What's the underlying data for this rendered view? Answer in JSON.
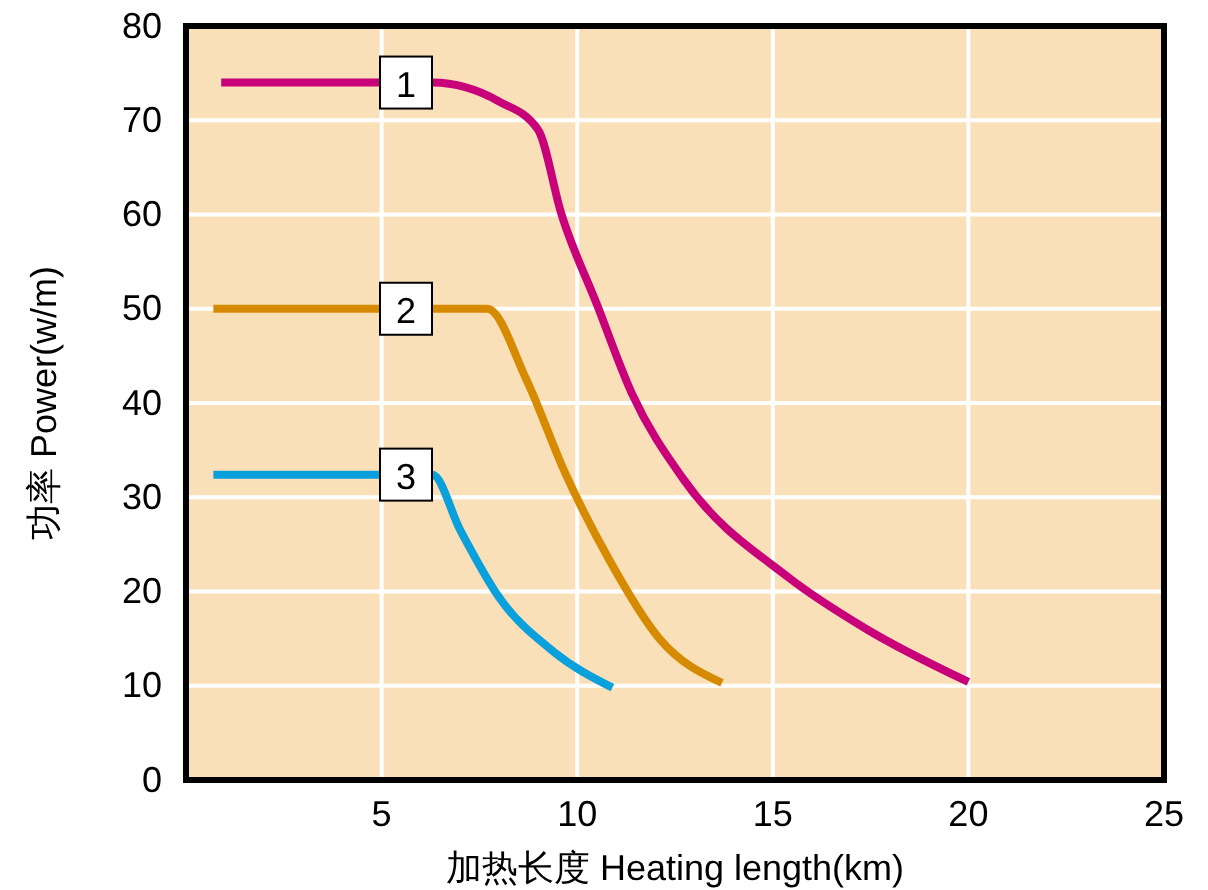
{
  "chart_data": {
    "type": "line",
    "xlabel": "加热长度 Heating length(km)",
    "ylabel": "功率 Power(w/m)",
    "xlim": [
      0,
      25
    ],
    "xticks": [
      5,
      10,
      15,
      20,
      25
    ],
    "ylim": [
      0,
      80
    ],
    "yticks": [
      0,
      10,
      20,
      30,
      40,
      50,
      60,
      70,
      80
    ],
    "grid": true,
    "marker": "none",
    "line_style": "solid",
    "series": [
      {
        "name": "1",
        "color": "#c8007a",
        "x": [
          0.9,
          6.3,
          8.0,
          9.0,
          9.6,
          10.5,
          11.4,
          12.7,
          15.4,
          17.4,
          20.0
        ],
        "values": [
          74,
          74,
          72,
          69,
          60,
          50.5,
          41,
          32,
          21.5,
          16,
          10.4
        ]
      },
      {
        "name": "2",
        "color": "#d68a00",
        "x": [
          0.7,
          7.7,
          8.7,
          9.7,
          10.8,
          12.1,
          13.7
        ],
        "values": [
          50,
          50,
          42.5,
          32.5,
          23.5,
          15,
          10.3
        ]
      },
      {
        "name": "3",
        "color": "#0aa0dc",
        "x": [
          0.7,
          6.3,
          7.0,
          8.0,
          9.4,
          10.9
        ],
        "values": [
          32.4,
          32.4,
          26.6,
          19.4,
          13.6,
          9.8
        ]
      }
    ]
  }
}
